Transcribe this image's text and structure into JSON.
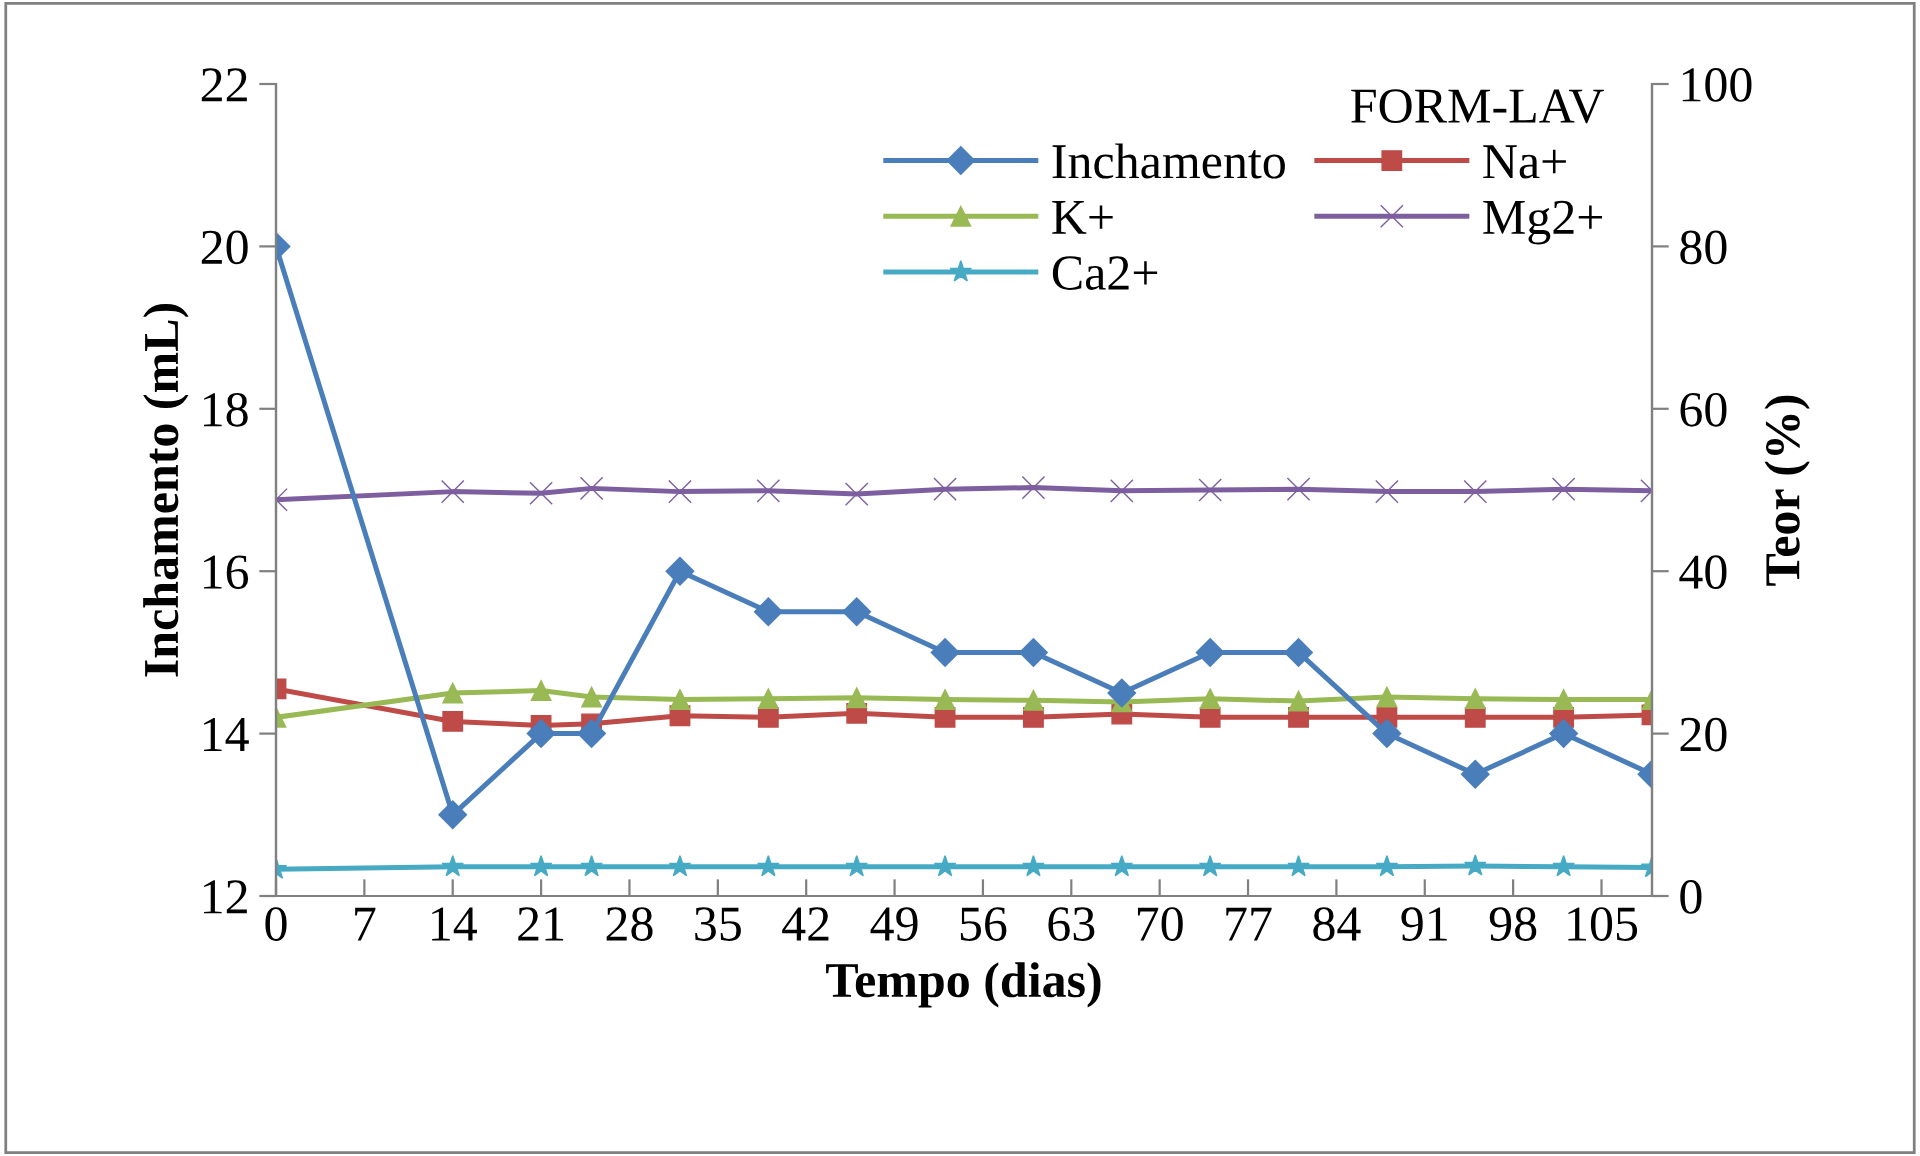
{
  "chart_data": {
    "type": "line",
    "xlabel": "Tempo (dias)",
    "ylabel": "Inchamento (mL)",
    "y2label": "Teor (%)",
    "legend_title": "FORM-LAV",
    "legend": "top right",
    "grid": false,
    "x": [
      0,
      14,
      21,
      25,
      32,
      39,
      46,
      53,
      60,
      67,
      74,
      81,
      88,
      95,
      102,
      109
    ],
    "xlim": [
      0,
      109
    ],
    "xticks": [
      0,
      7,
      14,
      21,
      28,
      35,
      42,
      49,
      56,
      63,
      70,
      77,
      84,
      91,
      98,
      105
    ],
    "ylim": [
      12,
      22
    ],
    "yticks": [
      12,
      14,
      16,
      18,
      20,
      22
    ],
    "y2lim": [
      0,
      100
    ],
    "y2ticks": [
      0,
      20,
      40,
      60,
      80,
      100
    ],
    "series": [
      {
        "name": "Inchamento",
        "color": "#4a7ebb",
        "marker": "diamond",
        "values": [
          20,
          13,
          14,
          14,
          16,
          15.5,
          15.5,
          15,
          15,
          14.5,
          15,
          15,
          14,
          13.5,
          14,
          13.5
        ]
      },
      {
        "name": "Na+",
        "color": "#be4b48",
        "marker": "square",
        "axis": "y2",
        "values": [
          25.5,
          21.5,
          21,
          21.2,
          22.2,
          22,
          22.5,
          22,
          22,
          22.4,
          22,
          22,
          22,
          22,
          22,
          22.3
        ]
      },
      {
        "name": "K+",
        "color": "#98b954",
        "marker": "triangle",
        "axis": "y2",
        "values": [
          22,
          25,
          25.3,
          24.5,
          24.2,
          24.3,
          24.4,
          24.2,
          24.1,
          23.9,
          24.3,
          24,
          24.5,
          24.3,
          24.2,
          24.2
        ]
      },
      {
        "name": "Mg2+",
        "color": "#7d5fa0",
        "marker": "cross",
        "axis": "y2",
        "values": [
          48.8,
          49.8,
          49.6,
          50.2,
          49.8,
          49.9,
          49.5,
          50.1,
          50.3,
          49.9,
          50,
          50.1,
          49.8,
          49.8,
          50.1,
          49.9
        ]
      },
      {
        "name": "Ca2+",
        "color": "#46aac5",
        "marker": "star",
        "axis": "y2",
        "values": [
          3.3,
          3.6,
          3.6,
          3.6,
          3.6,
          3.6,
          3.6,
          3.6,
          3.6,
          3.6,
          3.6,
          3.6,
          3.6,
          3.7,
          3.6,
          3.5
        ]
      }
    ]
  }
}
